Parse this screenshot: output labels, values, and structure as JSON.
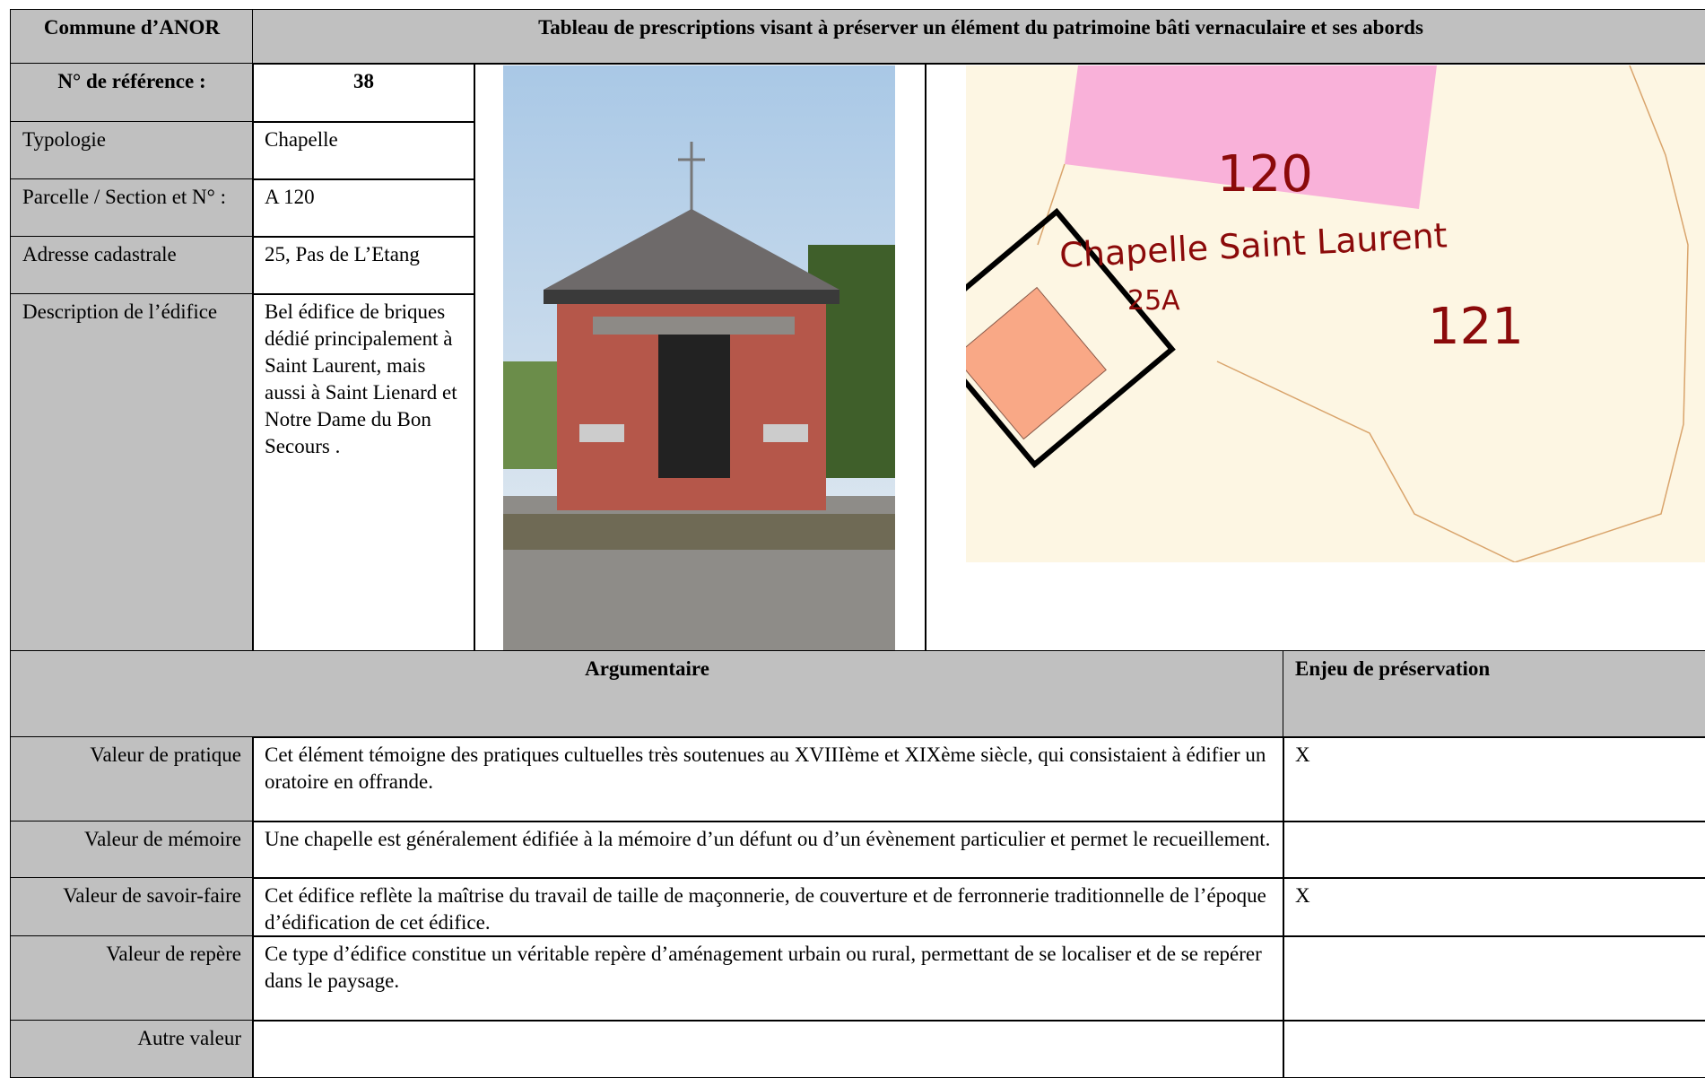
{
  "header": {
    "commune": "Commune d’ANOR",
    "title": "Tableau de prescriptions visant à préserver un élément du patrimoine bâti vernaculaire et ses abords"
  },
  "reference": {
    "label": "N° de référence :",
    "value": "38"
  },
  "fields": [
    {
      "label": "Typologie",
      "value": "Chapelle"
    },
    {
      "label": "Parcelle / Section et N° :",
      "value": "A 120"
    },
    {
      "label": "Adresse cadastrale",
      "value": "25, Pas de L’Etang"
    },
    {
      "label": "Description de l’édifice",
      "value": "Bel édifice de briques dédié principalement à Saint Laurent, mais aussi à Saint Lienard et Notre Dame du Bon Secours ."
    }
  ],
  "map": {
    "parcel_a": "120",
    "parcel_b": "121",
    "name": "Chapelle Saint Laurent",
    "number": "25A"
  },
  "argumentaire": {
    "header": "Argumentaire",
    "enjeu_header": "Enjeu de préservation",
    "rows": [
      {
        "label": "Valeur de pratique",
        "text": "Cet élément témoigne des pratiques cultuelles très soutenues au XVIIIème et XIXème siècle, qui consistaient à édifier un oratoire en offrande.",
        "enjeu": "X"
      },
      {
        "label": "Valeur de mémoire",
        "text": "Une chapelle est généralement édifiée à la mémoire d’un défunt ou d’un évènement particulier et permet le recueillement."
      },
      {
        "label": "Valeur de savoir-faire",
        "text": "Cet édifice reflète la maîtrise du travail de taille de maçonnerie, de couverture et de ferronnerie traditionnelle de l’époque d’édification de cet édifice.",
        "enjeu": "X"
      },
      {
        "label": "Valeur de repère",
        "text": "Ce type d’édifice constitue un véritable repère d’aménagement urbain ou rural, permettant de se localiser et de se repérer dans le paysage."
      },
      {
        "label": "Autre valeur"
      }
    ]
  }
}
